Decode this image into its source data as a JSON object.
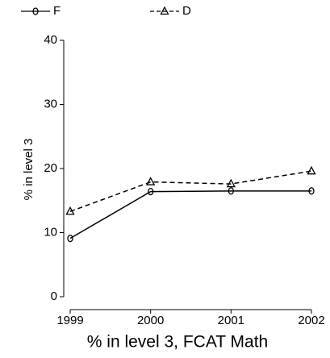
{
  "chart_data": {
    "type": "line",
    "x": [
      1999,
      2000,
      2001,
      2002
    ],
    "series": [
      {
        "name": "F",
        "color": "#000000",
        "dash": false,
        "marker": "circle",
        "values": [
          9.1,
          16.4,
          16.5,
          16.5
        ]
      },
      {
        "name": "D",
        "color": "#000000",
        "dash": true,
        "marker": "triangle",
        "values": [
          13.3,
          17.9,
          17.6,
          19.6
        ]
      }
    ],
    "xlim": [
      1999,
      2002
    ],
    "xticks": [
      1999,
      2000,
      2001,
      2002
    ],
    "ylim": [
      0,
      40
    ],
    "yticks": [
      0,
      10,
      20,
      30,
      40
    ],
    "ylabel": "% in level 3",
    "xlabel": "% in level 3, FCAT Math",
    "grid": false,
    "legend": "top"
  }
}
